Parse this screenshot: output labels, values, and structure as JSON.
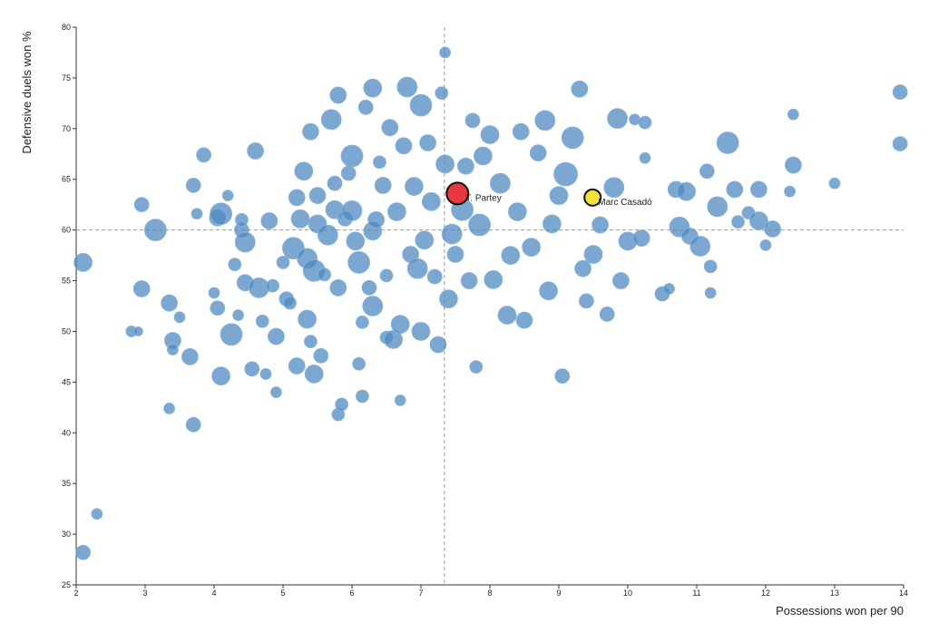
{
  "chart_data": {
    "type": "scatter",
    "x_label": "Possessions won per 90",
    "y_label": "Defensive duels won %",
    "xlim": [
      2,
      14
    ],
    "xticks": [
      2,
      3,
      4,
      5,
      6,
      7,
      8,
      9,
      10,
      11,
      12,
      13,
      14
    ],
    "ylim": [
      25,
      80
    ],
    "yticks": [
      25,
      30,
      35,
      40,
      45,
      50,
      55,
      60,
      65,
      70,
      75,
      80
    ],
    "x_reference": 7.34,
    "y_reference": 60,
    "color": "#4f89c0",
    "x": [
      2.1,
      2.1,
      2.3,
      2.8,
      2.9,
      2.95,
      2.95,
      3.15,
      3.35,
      3.35,
      3.4,
      3.4,
      3.5,
      3.65,
      3.7,
      3.7,
      3.75,
      3.85,
      4.0,
      4.05,
      4.1,
      4.05,
      4.1,
      4.2,
      4.25,
      4.3,
      4.35,
      4.4,
      4.4,
      4.45,
      4.45,
      4.55,
      4.6,
      4.65,
      4.7,
      4.75,
      4.8,
      4.85,
      4.9,
      4.9,
      5.0,
      5.05,
      5.1,
      5.15,
      5.2,
      5.2,
      5.25,
      5.3,
      5.35,
      5.35,
      5.4,
      5.4,
      5.45,
      5.45,
      5.5,
      5.5,
      5.55,
      5.6,
      5.65,
      5.7,
      5.75,
      5.75,
      5.8,
      5.8,
      5.8,
      5.85,
      5.9,
      5.95,
      6.0,
      6.0,
      6.05,
      6.1,
      6.1,
      6.15,
      6.15,
      6.2,
      6.25,
      6.3,
      6.3,
      6.3,
      6.35,
      6.4,
      6.45,
      6.5,
      6.5,
      6.55,
      6.6,
      6.65,
      6.7,
      6.7,
      6.75,
      6.8,
      6.85,
      6.9,
      6.95,
      7.0,
      7.0,
      7.05,
      7.1,
      7.15,
      7.2,
      7.25,
      7.3,
      7.35,
      7.35,
      7.4,
      7.45,
      7.5,
      7.6,
      7.65,
      7.7,
      7.75,
      7.8,
      7.85,
      7.9,
      8.0,
      8.05,
      8.15,
      8.25,
      8.3,
      8.4,
      8.45,
      8.5,
      8.6,
      8.7,
      8.8,
      8.85,
      8.9,
      9.0,
      9.05,
      9.1,
      9.2,
      9.3,
      9.35,
      9.4,
      9.5,
      9.6,
      9.7,
      9.8,
      9.85,
      9.9,
      10.0,
      10.1,
      10.2,
      10.25,
      10.25,
      10.5,
      10.6,
      10.7,
      10.75,
      10.85,
      10.9,
      11.05,
      11.15,
      11.2,
      11.2,
      11.3,
      11.45,
      11.55,
      11.6,
      11.75,
      11.9,
      11.9,
      12.0,
      12.1,
      12.35,
      12.4,
      12.4,
      13.0,
      13.95,
      13.95
    ],
    "values": [
      56.8,
      28.2,
      32,
      50,
      50,
      54.2,
      62.5,
      60,
      52.8,
      42.4,
      49.1,
      48.2,
      51.4,
      47.5,
      40.8,
      64.4,
      61.6,
      67.4,
      53.8,
      61.2,
      61.6,
      52.3,
      45.6,
      63.4,
      49.7,
      56.6,
      51.6,
      60,
      61,
      58.8,
      54.8,
      46.3,
      67.8,
      54.3,
      51,
      45.8,
      60.9,
      54.5,
      49.5,
      44,
      56.8,
      53.2,
      52.8,
      58.2,
      46.6,
      63.2,
      61.1,
      65.8,
      51.2,
      57.2,
      69.7,
      49,
      45.8,
      56,
      60.6,
      63.4,
      47.6,
      55.6,
      59.5,
      70.9,
      62,
      64.6,
      73.3,
      54.3,
      41.8,
      42.8,
      61.1,
      65.6,
      67.3,
      61.9,
      58.9,
      56.8,
      46.8,
      50.9,
      43.6,
      72.1,
      54.3,
      59.9,
      52.5,
      74,
      61,
      66.7,
      64.4,
      55.5,
      49.4,
      70.1,
      49.2,
      61.8,
      50.7,
      43.2,
      68.3,
      74.1,
      57.6,
      64.3,
      56.2,
      50,
      72.3,
      59,
      68.6,
      62.8,
      55.4,
      48.7,
      73.5,
      77.5,
      66.5,
      53.2,
      59.6,
      57.6,
      62,
      66.3,
      55,
      70.8,
      46.5,
      60.5,
      67.3,
      69.4,
      55.1,
      64.6,
      51.6,
      57.5,
      61.8,
      69.7,
      51.1,
      58.3,
      67.6,
      70.8,
      54,
      60.6,
      63.4,
      45.6,
      65.5,
      69.1,
      73.9,
      56.2,
      53,
      57.6,
      60.5,
      51.7,
      64.2,
      71,
      55,
      58.9,
      70.9,
      59.2,
      70.6,
      67.1,
      53.7,
      54.2,
      64,
      60.3,
      63.8,
      59.4,
      58.4,
      65.8,
      56.4,
      53.8,
      62.3,
      68.6,
      64,
      60.8,
      61.7,
      64,
      60.9,
      58.5,
      60.1,
      63.8,
      71.4,
      66.4,
      64.6,
      73.6,
      68.5
    ],
    "sizes": [
      10,
      8,
      6,
      6,
      5,
      9,
      8,
      12,
      9,
      6,
      9,
      6,
      6,
      9,
      8,
      8,
      6,
      8,
      6,
      9,
      12,
      8,
      10,
      6,
      12,
      7,
      6,
      8,
      7,
      11,
      9,
      8,
      9,
      11,
      7,
      6,
      9,
      7,
      9,
      6,
      7,
      8,
      7,
      12,
      9,
      9,
      10,
      10,
      10,
      11,
      9,
      7,
      10,
      12,
      10,
      9,
      8,
      7,
      11,
      11,
      10,
      8,
      9,
      9,
      7,
      7,
      8,
      8,
      12,
      11,
      10,
      12,
      7,
      7,
      7,
      8,
      8,
      10,
      11,
      10,
      9,
      7,
      9,
      7,
      7,
      9,
      10,
      10,
      10,
      6,
      9,
      11,
      9,
      10,
      11,
      10,
      12,
      10,
      9,
      10,
      8,
      9,
      7,
      6,
      10,
      10,
      11,
      9,
      12,
      9,
      9,
      8,
      7,
      12,
      10,
      10,
      10,
      11,
      10,
      10,
      10,
      9,
      9,
      10,
      9,
      11,
      10,
      10,
      10,
      8,
      13,
      12,
      9,
      9,
      8,
      10,
      9,
      8,
      11,
      11,
      9,
      10,
      6,
      9,
      7,
      6,
      8,
      6,
      9,
      11,
      10,
      9,
      11,
      8,
      7,
      6,
      11,
      12,
      9,
      7,
      7,
      9,
      10,
      6,
      9,
      6,
      6,
      9,
      6,
      8,
      8
    ],
    "highlights": [
      {
        "name": "T. Partey",
        "x": 7.53,
        "y": 63.6,
        "size": 12,
        "color": "#e8383d"
      },
      {
        "name": "Marc Casadó",
        "x": 9.49,
        "y": 63.2,
        "size": 9,
        "color": "#f2e33b"
      }
    ]
  }
}
